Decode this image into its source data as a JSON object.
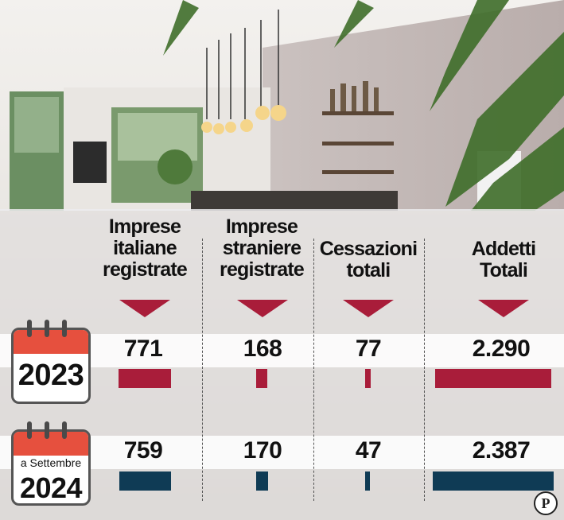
{
  "colors": {
    "year_2023": "#a91d3a",
    "year_2024": "#0f3b55",
    "arrow": "#a91d3a",
    "calendar_top": "#e6503e"
  },
  "icons": [
    "calendar-icon",
    "calendar-icon",
    "publisher-logo-icon"
  ],
  "chart_data": {
    "type": "bar",
    "categories": [
      "Imprese italiane registrate",
      "Imprese straniere registrate",
      "Cessazioni totali",
      "Addetti Totali"
    ],
    "category_lines": [
      [
        "Imprese",
        "italiane",
        "registrate"
      ],
      [
        "Imprese",
        "straniere",
        "registrate"
      ],
      [
        "Cessazioni",
        "totali"
      ],
      [
        "Addetti",
        "Totali"
      ]
    ],
    "series": [
      {
        "name": "2023",
        "label_top": "",
        "values": [
          771,
          168,
          77,
          2290
        ],
        "labels": [
          "771",
          "168",
          "77",
          "2.290"
        ]
      },
      {
        "name": "2024",
        "label_top": "a Settembre",
        "values": [
          759,
          170,
          47,
          2387
        ],
        "labels": [
          "759",
          "170",
          "47",
          "2.387"
        ]
      }
    ]
  },
  "logo_text": "P"
}
